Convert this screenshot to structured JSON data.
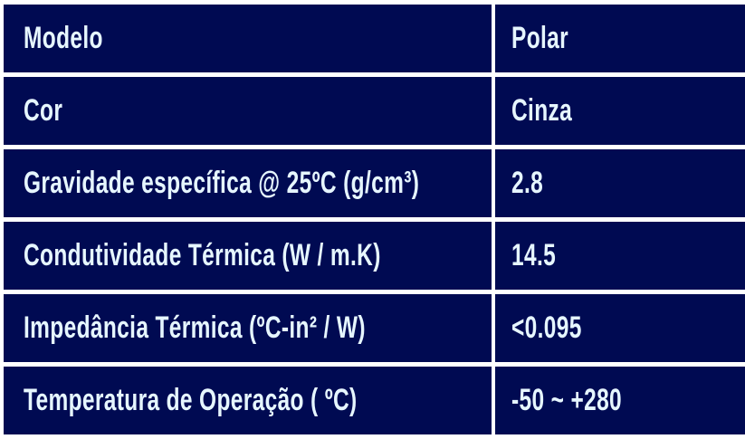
{
  "table": {
    "rows": [
      {
        "label": "Modelo",
        "value": "Polar"
      },
      {
        "label": "Cor",
        "value": "Cinza"
      },
      {
        "label": "Gravidade específica @ 25ºC (g/cm³)",
        "value": "2.8"
      },
      {
        "label": "Condutividade Térmica (W / m.K)",
        "value": "14.5"
      },
      {
        "label": "Impedância Térmica (ºC-in² / W)",
        "value": "<0.095"
      },
      {
        "label": "Temperatura de Operação ( ºC)",
        "value": "-50 ~ +280"
      }
    ]
  },
  "colors": {
    "cell_background": "#000a52",
    "text": "#e6f6ff"
  }
}
